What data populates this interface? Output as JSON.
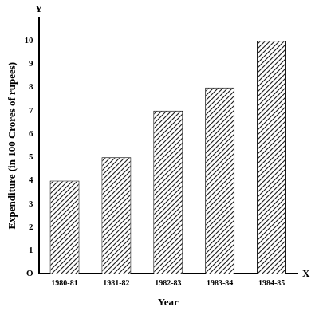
{
  "chart_data": {
    "type": "bar",
    "categories": [
      "1980-81",
      "1981-82",
      "1982-83",
      "1983-84",
      "1984-85"
    ],
    "values": [
      4,
      5,
      7,
      8,
      10
    ],
    "color": "#222222",
    "x_label": "Year",
    "y_label": "Expenditure (in 100 Crores of rupees)",
    "ylim": [
      0,
      11
    ],
    "yticks": [
      {
        "value": 0,
        "label": "O"
      },
      1,
      2,
      3,
      4,
      5,
      6,
      7,
      8,
      9,
      10
    ],
    "annotations": [
      "Y",
      "X"
    ],
    "grid": false
  }
}
